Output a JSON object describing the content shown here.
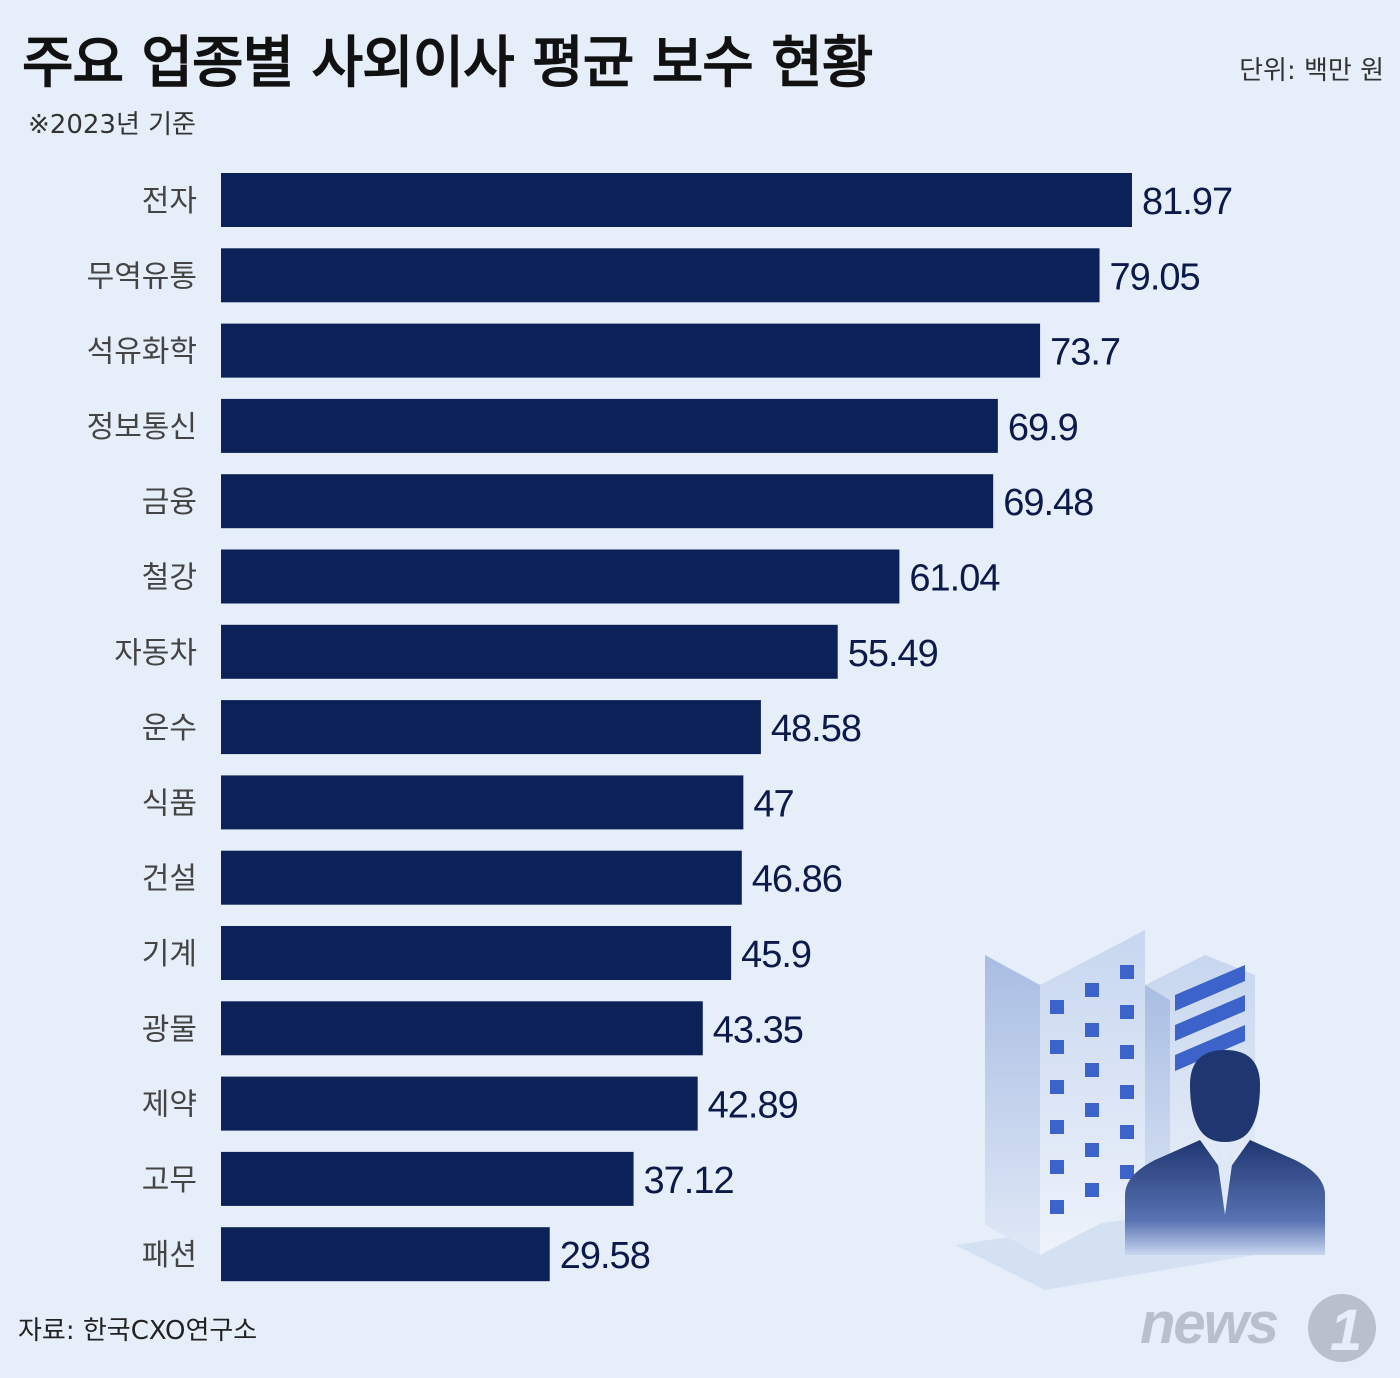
{
  "header": {
    "title": "주요 업종별 사외이사 평균 보수 현황",
    "unit": "단위: 백만 원",
    "subtitle": "※2023년 기준"
  },
  "footer": {
    "source": "자료: 한국CXO연구소",
    "logo_text": "news",
    "logo_mark": "1"
  },
  "colors": {
    "bar": "#0c2157",
    "background": "#e6eff9",
    "value_text": "#0b1a4a"
  },
  "chart_data": {
    "type": "bar",
    "orientation": "horizontal",
    "categories": [
      "전자",
      "무역유통",
      "석유화학",
      "정보통신",
      "금융",
      "철강",
      "자동차",
      "운수",
      "식품",
      "건설",
      "기계",
      "광물",
      "제약",
      "고무",
      "패션"
    ],
    "values": [
      81.97,
      79.05,
      73.7,
      69.9,
      69.48,
      61.04,
      55.49,
      48.58,
      47,
      46.86,
      45.9,
      43.35,
      42.89,
      37.12,
      29.58
    ],
    "value_labels": [
      "81.97",
      "79.05",
      "73.7",
      "69.9",
      "69.48",
      "61.04",
      "55.49",
      "48.58",
      "47",
      "46.86",
      "45.9",
      "43.35",
      "42.89",
      "37.12",
      "29.58"
    ],
    "xlim": [
      0,
      81.97
    ],
    "grid": false,
    "legend": "none"
  },
  "illustration": {
    "icon": "building-and-businessman-icon"
  }
}
